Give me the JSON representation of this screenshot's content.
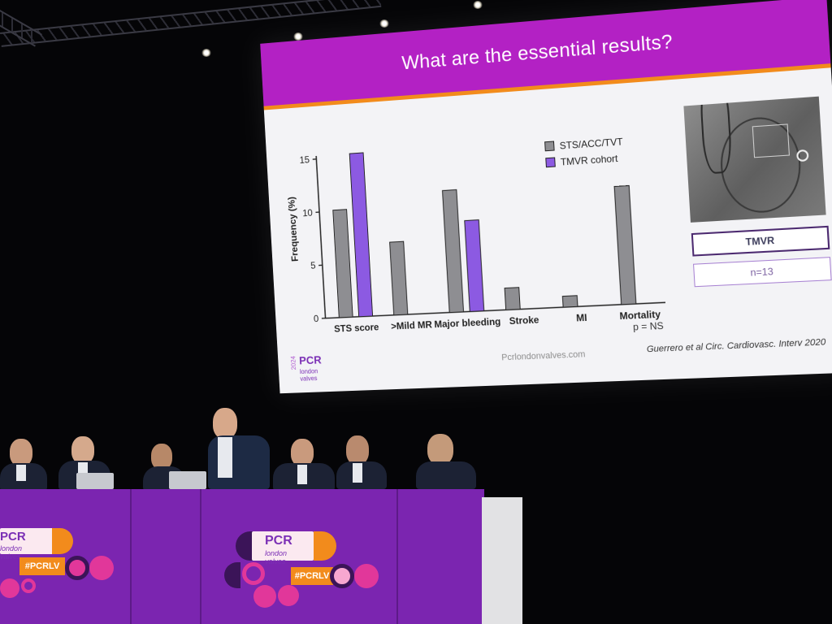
{
  "slide": {
    "title": "What are the essential results?",
    "footer_website": "Pcrlondonvalves.com",
    "citation": "Guerrero et al Circ. Cardiovasc. Interv 2020",
    "p_value": "p = NS",
    "image_label": "TMVR",
    "image_n": "n=13",
    "logo": {
      "year": "2024",
      "brand": "PCR",
      "subtitle": "london valves"
    }
  },
  "chart_data": {
    "type": "bar",
    "title": "",
    "xlabel": "",
    "ylabel": "Frequency (%)",
    "ylim": [
      0,
      15
    ],
    "yticks": [
      "0",
      "5",
      "10",
      "15"
    ],
    "categories": [
      "STS score",
      ">Mild MR",
      "Major bleeding",
      "Stroke",
      "MI",
      "Mortality"
    ],
    "series": [
      {
        "name": "STS/ACC/TVT",
        "color": "#8e8e92",
        "values": [
          10.1,
          6.8,
          11.3,
          2.0,
          1.0,
          10.7
        ]
      },
      {
        "name": "TMVR cohort",
        "color": "#8c5ae2",
        "values": [
          15.3,
          0,
          8.4,
          0,
          0,
          0
        ]
      }
    ],
    "legend_position": "top-right",
    "grid": false
  },
  "table_banner": {
    "brand": "PCR",
    "subtitle": "london valves",
    "hashtag": "#PCRLV",
    "colors": {
      "purple": "#7b25b0",
      "orange": "#f28b1c",
      "pink": "#e1379a"
    }
  }
}
